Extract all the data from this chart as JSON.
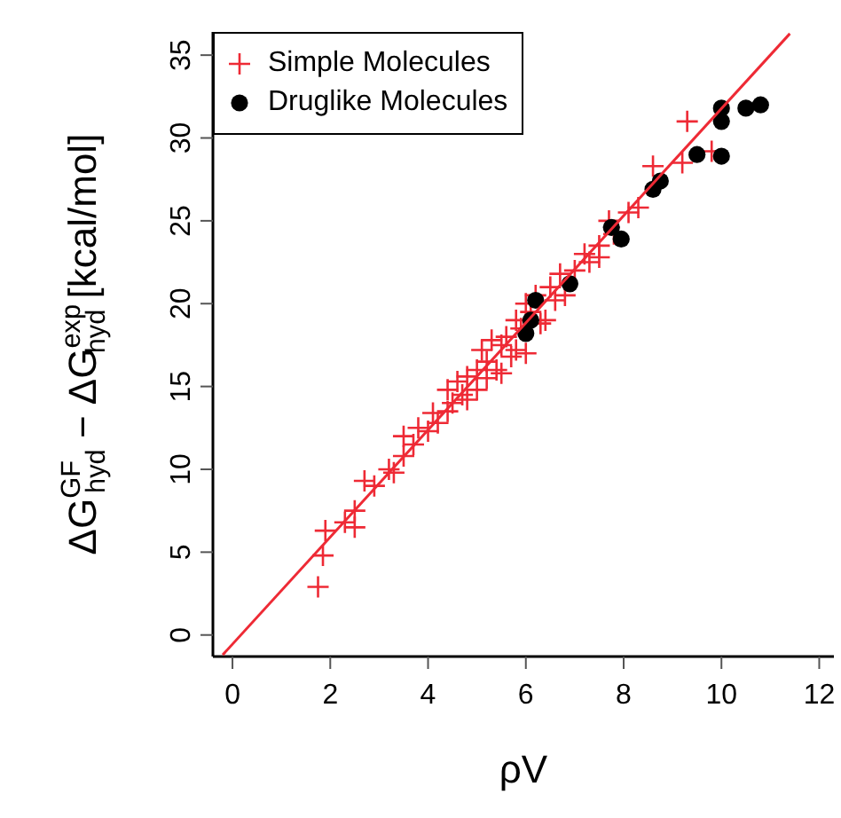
{
  "chart_data": {
    "type": "scatter",
    "xlabel": "ρV",
    "ylabel": "ΔG$^{GF}$$_{hyd}$ − ΔG$^{exp}$$_{hyd}$ [kcal/mol]",
    "xlim": [
      -0.4,
      12.3
    ],
    "ylim": [
      -1.3,
      36.4
    ],
    "xticks": [
      0,
      2,
      4,
      6,
      8,
      10,
      12
    ],
    "yticks": [
      0,
      5,
      10,
      15,
      20,
      25,
      30,
      35
    ],
    "grid": false,
    "legend": "top left",
    "series": [
      {
        "name": "Simple Molecules",
        "color": "#ee2a35",
        "marker": "cross",
        "x": [
          1.75,
          1.85,
          1.9,
          2.3,
          2.5,
          2.5,
          2.7,
          2.9,
          3.2,
          3.3,
          3.5,
          3.5,
          3.7,
          3.8,
          4.0,
          4.1,
          4.2,
          4.4,
          4.4,
          4.5,
          4.6,
          4.7,
          4.8,
          4.8,
          5.0,
          5.0,
          5.1,
          5.2,
          5.2,
          5.3,
          5.4,
          5.5,
          5.5,
          5.6,
          5.7,
          5.8,
          5.8,
          5.9,
          6.0,
          6.0,
          6.1,
          6.2,
          6.3,
          6.4,
          6.5,
          6.6,
          6.7,
          6.8,
          7.0,
          7.2,
          7.3,
          7.5,
          7.5,
          7.7,
          7.8,
          8.1,
          8.3,
          8.6,
          9.2,
          9.3,
          9.8
        ],
        "values": [
          2.9,
          4.8,
          6.3,
          6.8,
          6.5,
          7.5,
          9.3,
          9.0,
          10.0,
          9.8,
          10.8,
          12.0,
          11.5,
          12.5,
          12.3,
          13.4,
          12.8,
          14.8,
          13.5,
          14.0,
          15.3,
          14.5,
          15.6,
          14.2,
          16.0,
          14.8,
          17.2,
          15.5,
          16.5,
          17.8,
          16.0,
          17.5,
          15.8,
          18.0,
          16.8,
          17.2,
          19.0,
          18.5,
          20.0,
          17.0,
          19.5,
          20.5,
          18.8,
          19.0,
          21.0,
          20.2,
          21.8,
          20.5,
          22.0,
          23.0,
          22.5,
          23.5,
          22.8,
          25.0,
          24.2,
          25.5,
          25.8,
          28.3,
          28.5,
          31.0,
          29.2
        ]
      },
      {
        "name": "Druglike Molecules",
        "color": "#000000",
        "marker": "circle",
        "x": [
          6.0,
          6.1,
          6.2,
          6.9,
          7.75,
          7.95,
          8.6,
          8.75,
          9.5,
          10.0,
          10.0,
          10.0,
          10.5,
          10.8
        ],
        "values": [
          18.2,
          19.0,
          20.2,
          21.2,
          24.6,
          23.9,
          26.9,
          27.4,
          29.0,
          28.9,
          31.0,
          31.8,
          31.8,
          32.0
        ]
      },
      {
        "type": "line",
        "color": "#ee2a35",
        "marker": "none",
        "x": [
          -0.2,
          11.4
        ],
        "values": [
          -1.2,
          36.3
        ]
      }
    ]
  }
}
